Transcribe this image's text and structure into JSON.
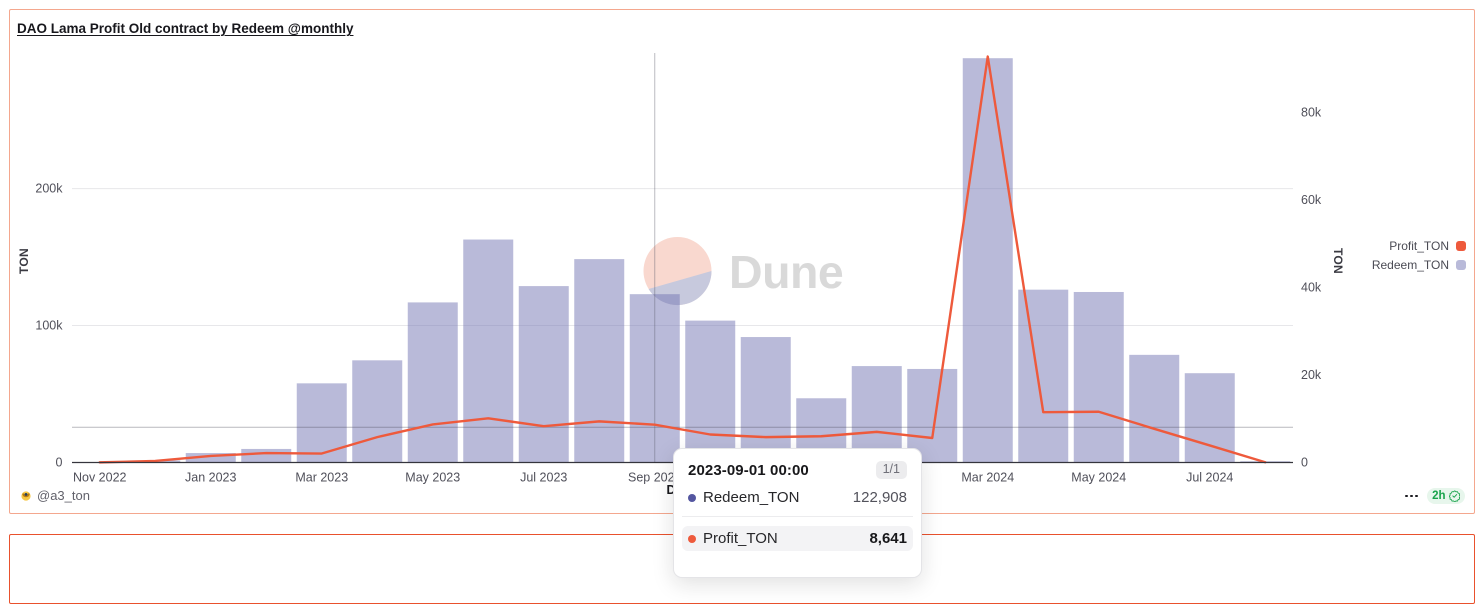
{
  "widget": {
    "title": "DAO Lama Profit Old contract by Redeem @monthly",
    "author": "@a3_ton",
    "last_refresh": "2h",
    "refresh_status": "success"
  },
  "colors": {
    "card_border": "#f4a78e",
    "next_card_border": "#e9512d",
    "profit_accent": "#ee5a3c",
    "redeem_accent": "#5456a0",
    "bar_fill_rendered": "#b9bad9",
    "refresh_green": "#18a34b",
    "watermark_pink": "#f9d8cf",
    "watermark_lavender": "#c7c9dd",
    "watermark_text_gray": "#d9d9d9"
  },
  "chart_data": {
    "type": "bar",
    "subtype": "combo bar+line, dual y-axis",
    "categories": [
      "Nov 2022",
      "Dec 2022",
      "Jan 2023",
      "Feb 2023",
      "Mar 2023",
      "Apr 2023",
      "May 2023",
      "Jun 2023",
      "Jul 2023",
      "Aug 2023",
      "Sep 2023",
      "Oct 2023",
      "Nov 2023",
      "Dec 2023",
      "Jan 2024",
      "Feb 2024",
      "Mar 2024",
      "Apr 2024",
      "May 2024",
      "Jun 2024",
      "Jul 2024",
      "Aug 2024"
    ],
    "x_tick_labels": [
      "Nov 2022",
      "Jan 2023",
      "Mar 2023",
      "May 2023",
      "Jul 2023",
      "Sep 2023",
      "Nov 2023",
      "Jan 2024",
      "Mar 2024",
      "May 2024",
      "Jul 2024"
    ],
    "series": [
      {
        "name": "Redeem_TON",
        "type": "bar",
        "axis": "left",
        "color": "#5456a0",
        "bar_base_fill": "#7375b3",
        "bar_opacity": 0.5,
        "legend_color": "#b9bad9",
        "values": [
          100,
          1500,
          6900,
          9900,
          57800,
          74600,
          116900,
          162800,
          128800,
          148500,
          122908,
          103600,
          91600,
          46900,
          70400,
          68300,
          295200,
          126200,
          124500,
          78600,
          65200,
          900
        ]
      },
      {
        "name": "Profit_TON",
        "type": "line",
        "axis": "right",
        "color": "#ee5a3c",
        "legend_color": "#ee5a3c",
        "values": [
          30,
          350,
          1500,
          2150,
          2050,
          5800,
          8700,
          10100,
          8300,
          9400,
          8641,
          6400,
          5800,
          6000,
          7000,
          5600,
          92800,
          11500,
          11600,
          7700,
          3900,
          60
        ]
      }
    ],
    "y_left": {
      "name": "TON",
      "tick_labels": [
        "0",
        "100k",
        "200k"
      ],
      "tick_values": [
        0,
        100000,
        200000
      ],
      "max": 299000,
      "grid": true
    },
    "y_right": {
      "name": "TON",
      "tick_labels": [
        "0",
        "20k",
        "40k",
        "60k",
        "80k"
      ],
      "tick_values": [
        0,
        20000,
        40000,
        60000,
        80000
      ],
      "max": 93600,
      "grid": false
    },
    "x_axis": {
      "name": "Date"
    },
    "legend": {
      "position": "right",
      "order": [
        "Profit_TON",
        "Redeem_TON"
      ]
    },
    "reference_line": {
      "axis": "right",
      "value": 8050
    },
    "crosshair": {
      "category": "Sep 2023",
      "index": 10
    },
    "watermark": {
      "text": "Dune"
    }
  },
  "tooltip": {
    "title": "2023-09-01 00:00",
    "page_indicator": "1/1",
    "rows": [
      {
        "series": "Redeem_TON",
        "value": "122,908",
        "highlighted": false
      },
      {
        "series": "Profit_TON",
        "value": "8,641",
        "highlighted": true
      }
    ]
  }
}
